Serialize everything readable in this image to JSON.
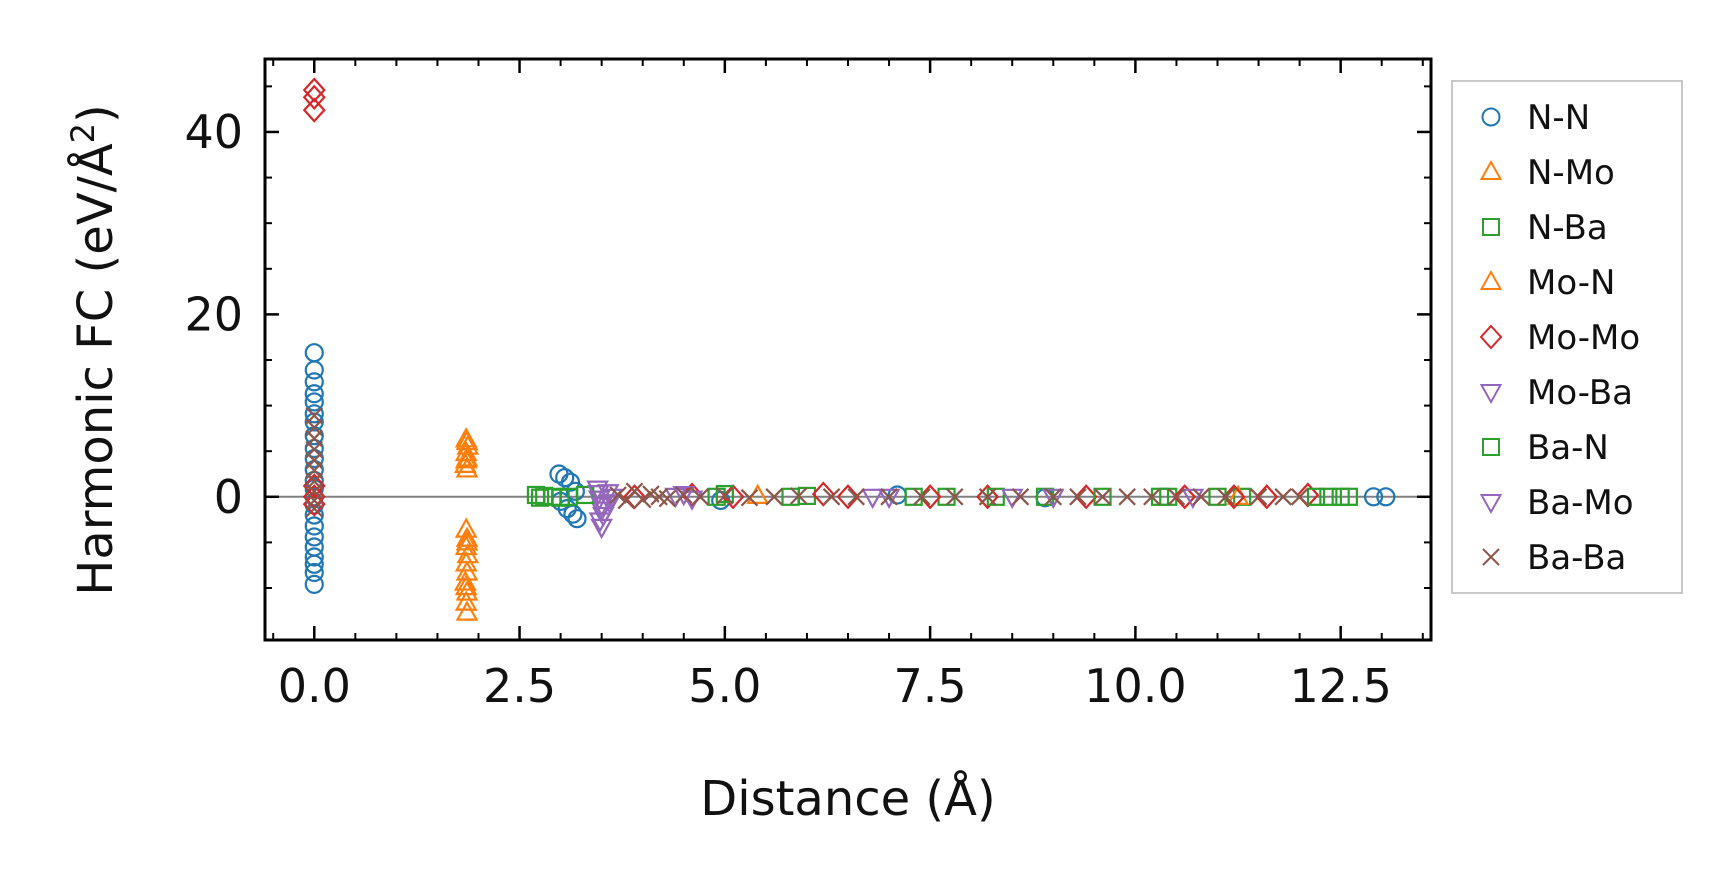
{
  "chart_data": {
    "type": "scatter",
    "xlabel": "Distance (Å)",
    "ylabel_main": "Harmonic FC (eV/Å",
    "ylabel_sup": "2",
    "ylabel_close": ")",
    "xlim": [
      -0.6,
      13.6
    ],
    "ylim": [
      -15.7,
      48
    ],
    "xticks": [
      0.0,
      2.5,
      5.0,
      7.5,
      10.0,
      12.5
    ],
    "xtick_labels": [
      "0.0",
      "2.5",
      "5.0",
      "7.5",
      "10.0",
      "12.5"
    ],
    "yticks": [
      0,
      20,
      40
    ],
    "ytick_labels": [
      "0",
      "20",
      "40"
    ],
    "zero_line": true,
    "grid": false,
    "legend_position": "outside-right",
    "series": [
      {
        "name": "N-N",
        "marker": "circle",
        "color": "#1f77b4",
        "points": [
          [
            0,
            15.8
          ],
          [
            0,
            13.9
          ],
          [
            0,
            12.6
          ],
          [
            0,
            11.3
          ],
          [
            0,
            10.4
          ],
          [
            0,
            9.1
          ],
          [
            0,
            8.2
          ],
          [
            0,
            6.7
          ],
          [
            0,
            5.3
          ],
          [
            0,
            4.2
          ],
          [
            0,
            3.0
          ],
          [
            0,
            1.8
          ],
          [
            0,
            0.9
          ],
          [
            0,
            0
          ],
          [
            0,
            -0.9
          ],
          [
            0,
            -2.0
          ],
          [
            0,
            -3.2
          ],
          [
            0,
            -4.4
          ],
          [
            0,
            -5.5
          ],
          [
            0,
            -6.6
          ],
          [
            0,
            -7.4
          ],
          [
            0,
            -8.3
          ],
          [
            0,
            -9.6
          ],
          [
            2.98,
            2.5
          ],
          [
            3.05,
            2.1
          ],
          [
            3.12,
            1.6
          ],
          [
            3.18,
            0.6
          ],
          [
            3.0,
            -0.5
          ],
          [
            3.08,
            -1.3
          ],
          [
            3.15,
            -1.9
          ],
          [
            3.2,
            -2.4
          ],
          [
            4.95,
            -0.4
          ],
          [
            7.1,
            0.2
          ],
          [
            8.9,
            -0.1
          ],
          [
            12.9,
            0
          ],
          [
            13.05,
            0
          ]
        ]
      },
      {
        "name": "N-Mo",
        "marker": "triangle-up",
        "color": "#ff7f0e",
        "points": [
          [
            1.85,
            6.3
          ],
          [
            1.87,
            5.5
          ],
          [
            1.85,
            4.8
          ],
          [
            1.86,
            4.2
          ],
          [
            1.84,
            3.5
          ],
          [
            1.86,
            3.0
          ],
          [
            1.85,
            -3.6
          ],
          [
            1.86,
            -4.6
          ],
          [
            1.85,
            -5.5
          ],
          [
            1.87,
            -6.4
          ],
          [
            1.85,
            -7.3
          ],
          [
            1.86,
            -8.3
          ],
          [
            1.84,
            -9.4
          ],
          [
            1.86,
            -10.5
          ],
          [
            1.85,
            -11.6
          ],
          [
            1.86,
            -12.7
          ]
        ]
      },
      {
        "name": "N-Ba",
        "marker": "square",
        "color": "#2ca02c",
        "points": [
          [
            2.7,
            0.2
          ],
          [
            2.8,
            0.1
          ],
          [
            2.9,
            0
          ],
          [
            3.0,
            -0.1
          ],
          [
            4.9,
            0
          ],
          [
            6.0,
            0.1
          ],
          [
            7.7,
            0
          ],
          [
            8.9,
            0
          ],
          [
            10.4,
            0
          ],
          [
            11.3,
            0
          ],
          [
            12.35,
            0
          ],
          [
            12.5,
            0
          ]
        ]
      },
      {
        "name": "Mo-N",
        "marker": "triangle-up",
        "color": "#ff7f0e",
        "points": [
          [
            1.86,
            6.0
          ],
          [
            1.85,
            4.0
          ],
          [
            1.86,
            -5.0
          ],
          [
            1.85,
            -9.9
          ],
          [
            5.4,
            0.1
          ],
          [
            11.25,
            0
          ]
        ]
      },
      {
        "name": "Mo-Mo",
        "marker": "diamond",
        "color": "#d62728",
        "points": [
          [
            0,
            44.6
          ],
          [
            0,
            43.8
          ],
          [
            0,
            42.4
          ],
          [
            0,
            1.2
          ],
          [
            0,
            0
          ],
          [
            0,
            -0.8
          ],
          [
            3.9,
            0
          ],
          [
            4.6,
            0.2
          ],
          [
            5.1,
            0
          ],
          [
            6.2,
            0.3
          ],
          [
            6.5,
            0
          ],
          [
            7.5,
            0
          ],
          [
            8.2,
            0
          ],
          [
            9.4,
            0
          ],
          [
            10.6,
            0
          ],
          [
            11.2,
            0
          ],
          [
            11.6,
            0
          ],
          [
            12.1,
            0.2
          ]
        ]
      },
      {
        "name": "Mo-Ba",
        "marker": "triangle-down",
        "color": "#9467bd",
        "points": [
          [
            3.45,
            0.9
          ],
          [
            3.47,
            -0.2
          ],
          [
            3.5,
            -1.4
          ],
          [
            3.48,
            -2.6
          ],
          [
            3.5,
            -3.3
          ],
          [
            3.58,
            0.5
          ],
          [
            3.6,
            -0.6
          ],
          [
            4.5,
            0.3
          ],
          [
            4.6,
            -0.2
          ],
          [
            6.8,
            0
          ],
          [
            9.0,
            0
          ],
          [
            10.7,
            0
          ]
        ]
      },
      {
        "name": "Ba-N",
        "marker": "square",
        "color": "#2ca02c",
        "points": [
          [
            2.75,
            -0.1
          ],
          [
            3.1,
            0
          ],
          [
            3.3,
            0.2
          ],
          [
            5.0,
            0.3
          ],
          [
            5.8,
            0
          ],
          [
            7.3,
            0
          ],
          [
            8.3,
            0
          ],
          [
            9.6,
            0
          ],
          [
            10.3,
            0
          ],
          [
            11.0,
            0
          ],
          [
            12.2,
            0
          ],
          [
            12.6,
            0
          ]
        ]
      },
      {
        "name": "Ba-Mo",
        "marker": "triangle-down",
        "color": "#9467bd",
        "points": [
          [
            3.46,
            0.4
          ],
          [
            3.5,
            -0.9
          ],
          [
            3.52,
            -2.0
          ],
          [
            3.62,
            0
          ],
          [
            4.4,
            0.1
          ],
          [
            7.0,
            0
          ],
          [
            8.5,
            0
          ]
        ]
      },
      {
        "name": "Ba-Ba",
        "marker": "x",
        "color": "#8c564b",
        "points": [
          [
            0,
            8.9
          ],
          [
            0,
            7.6
          ],
          [
            0,
            6.4
          ],
          [
            0,
            5.2
          ],
          [
            0,
            4.0
          ],
          [
            0,
            2.9
          ],
          [
            0,
            1.7
          ],
          [
            0,
            0.6
          ],
          [
            0,
            -0.4
          ],
          [
            0,
            -1.3
          ],
          [
            3.7,
            0.2
          ],
          [
            3.8,
            -0.4
          ],
          [
            3.9,
            0.6
          ],
          [
            4.0,
            -0.3
          ],
          [
            4.1,
            0.3
          ],
          [
            4.2,
            0
          ],
          [
            4.3,
            -0.2
          ],
          [
            4.5,
            0.2
          ],
          [
            4.7,
            0
          ],
          [
            5.0,
            0.1
          ],
          [
            5.3,
            -0.1
          ],
          [
            5.6,
            0
          ],
          [
            5.9,
            0.1
          ],
          [
            6.3,
            0
          ],
          [
            6.6,
            0
          ],
          [
            7.0,
            0
          ],
          [
            7.4,
            0
          ],
          [
            7.8,
            0
          ],
          [
            8.2,
            0
          ],
          [
            8.6,
            0
          ],
          [
            9.0,
            0
          ],
          [
            9.3,
            0
          ],
          [
            9.6,
            0
          ],
          [
            9.9,
            0
          ],
          [
            10.2,
            0
          ],
          [
            10.5,
            0
          ],
          [
            10.8,
            0
          ],
          [
            11.1,
            0
          ],
          [
            11.5,
            0
          ],
          [
            11.8,
            0
          ],
          [
            12.0,
            0
          ]
        ]
      }
    ]
  }
}
